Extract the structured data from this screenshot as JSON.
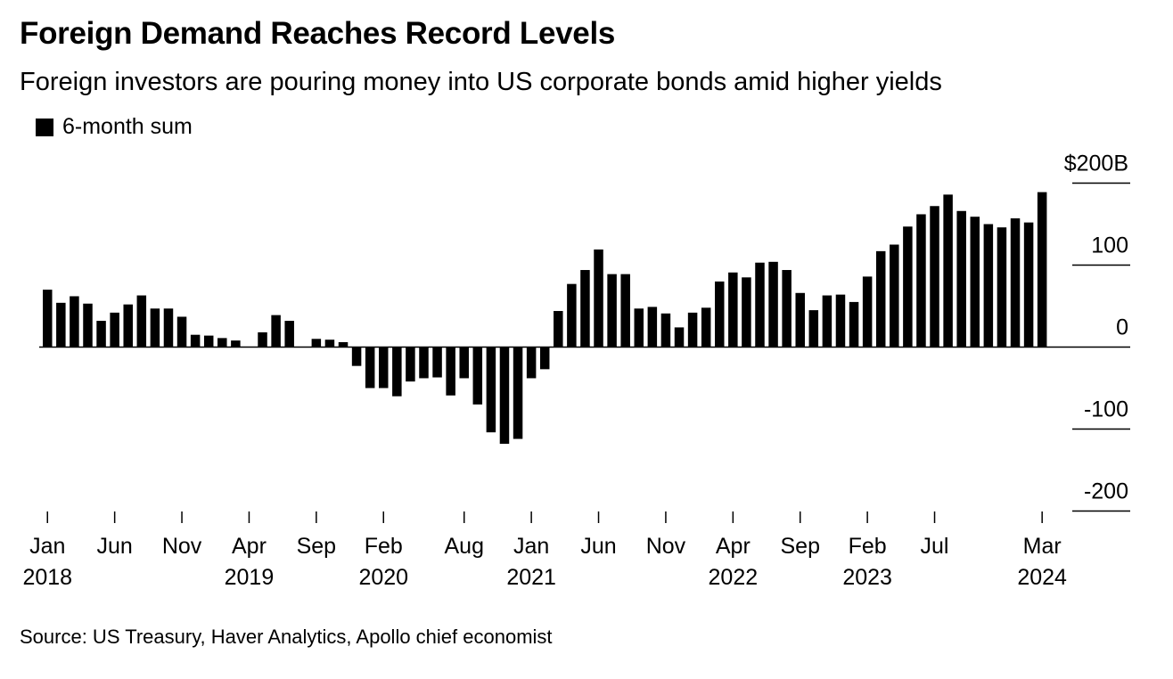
{
  "title": "Foreign Demand Reaches Record Levels",
  "subtitle": "Foreign investors are pouring money into US corporate bonds amid higher yields",
  "legend": {
    "label": "6-month sum"
  },
  "source": "Source: US Treasury, Haver Analytics, Apollo chief economist",
  "chart_data": {
    "type": "bar",
    "title": "Foreign Demand Reaches Record Levels",
    "subtitle": "Foreign investors are pouring money into US corporate bonds amid higher yields",
    "xlabel": "",
    "ylabel": "",
    "ylim": [
      -200,
      200
    ],
    "y_ticks": [
      {
        "value": 200,
        "label": "$200B"
      },
      {
        "value": 100,
        "label": "100"
      },
      {
        "value": 0,
        "label": "0"
      },
      {
        "value": -100,
        "label": "-100"
      },
      {
        "value": -200,
        "label": "-200"
      }
    ],
    "x_ticks": [
      {
        "month": "2018-01",
        "label1": "Jan",
        "label2": "2018"
      },
      {
        "month": "2018-06",
        "label1": "Jun",
        "label2": ""
      },
      {
        "month": "2018-11",
        "label1": "Nov",
        "label2": ""
      },
      {
        "month": "2019-04",
        "label1": "Apr",
        "label2": "2019"
      },
      {
        "month": "2019-09",
        "label1": "Sep",
        "label2": ""
      },
      {
        "month": "2020-02",
        "label1": "Feb",
        "label2": "2020"
      },
      {
        "month": "2020-08",
        "label1": "Aug",
        "label2": ""
      },
      {
        "month": "2021-01",
        "label1": "Jan",
        "label2": "2021"
      },
      {
        "month": "2021-06",
        "label1": "Jun",
        "label2": ""
      },
      {
        "month": "2021-11",
        "label1": "Nov",
        "label2": ""
      },
      {
        "month": "2022-04",
        "label1": "Apr",
        "label2": "2022"
      },
      {
        "month": "2022-09",
        "label1": "Sep",
        "label2": ""
      },
      {
        "month": "2023-02",
        "label1": "Feb",
        "label2": "2023"
      },
      {
        "month": "2023-07",
        "label1": "Jul",
        "label2": ""
      },
      {
        "month": "2024-03",
        "label1": "Mar",
        "label2": "2024"
      }
    ],
    "series": [
      {
        "name": "6-month sum",
        "color": "#000000",
        "categories": [
          "2018-01",
          "2018-02",
          "2018-03",
          "2018-04",
          "2018-05",
          "2018-06",
          "2018-07",
          "2018-08",
          "2018-09",
          "2018-10",
          "2018-11",
          "2018-12",
          "2019-01",
          "2019-02",
          "2019-03",
          "2019-04",
          "2019-05",
          "2019-06",
          "2019-07",
          "2019-08",
          "2019-09",
          "2019-10",
          "2019-11",
          "2019-12",
          "2020-01",
          "2020-02",
          "2020-03",
          "2020-04",
          "2020-05",
          "2020-06",
          "2020-07",
          "2020-08",
          "2020-09",
          "2020-10",
          "2020-11",
          "2020-12",
          "2021-01",
          "2021-02",
          "2021-03",
          "2021-04",
          "2021-05",
          "2021-06",
          "2021-07",
          "2021-08",
          "2021-09",
          "2021-10",
          "2021-11",
          "2021-12",
          "2022-01",
          "2022-02",
          "2022-03",
          "2022-04",
          "2022-05",
          "2022-06",
          "2022-07",
          "2022-08",
          "2022-09",
          "2022-10",
          "2022-11",
          "2022-12",
          "2023-01",
          "2023-02",
          "2023-03",
          "2023-04",
          "2023-05",
          "2023-06",
          "2023-07",
          "2023-08",
          "2023-09",
          "2023-10",
          "2023-11",
          "2023-12",
          "2024-01",
          "2024-02",
          "2024-03"
        ],
        "values": [
          70,
          54,
          62,
          53,
          32,
          42,
          52,
          63,
          47,
          47,
          37,
          15,
          14,
          11,
          8,
          0,
          18,
          39,
          32,
          0,
          10,
          9,
          6,
          -23,
          -50,
          -50,
          -60,
          -42,
          -38,
          -37,
          -59,
          -38,
          -70,
          -104,
          -118,
          -112,
          -38,
          -27,
          44,
          77,
          94,
          119,
          89,
          89,
          47,
          49,
          41,
          24,
          42,
          48,
          80,
          91,
          85,
          103,
          104,
          94,
          66,
          45,
          63,
          64,
          55,
          86,
          117,
          125,
          147,
          162,
          172,
          186,
          166,
          159,
          150,
          146,
          157,
          152,
          189
        ]
      }
    ],
    "grid": false,
    "legend_position": "top-left"
  }
}
